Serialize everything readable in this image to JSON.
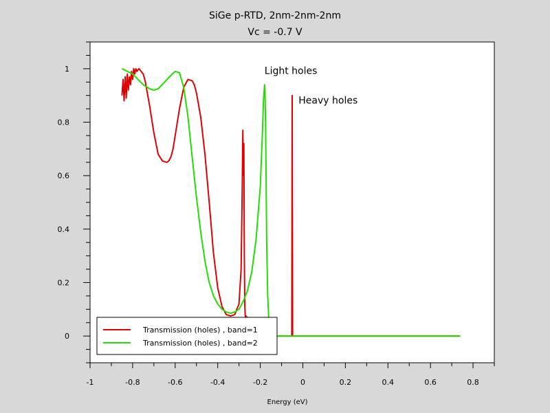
{
  "chart_data": {
    "type": "line",
    "title": "SiGe p-RTD, 2nm-2nm-2nm",
    "subtitle": "Vc = -0.7 V",
    "xlabel": "Energy (eV)",
    "ylabel": "",
    "xlim": [
      -1.0,
      0.9
    ],
    "ylim": [
      -0.1,
      1.1
    ],
    "xticks": [
      -1,
      -0.8,
      -0.6,
      -0.4,
      -0.2,
      0,
      0.2,
      0.4,
      0.6,
      0.8
    ],
    "xtick_labels": [
      "-1",
      "-0.8",
      "-0.6",
      "-0.4",
      "-0.2",
      "0",
      "0.2",
      "0.4",
      "0.6",
      "0.8"
    ],
    "yticks": [
      0,
      0.2,
      0.4,
      0.6,
      0.8,
      1
    ],
    "ytick_labels": [
      "0",
      "0.2",
      "0.4",
      "0.6",
      "0.8",
      "1"
    ],
    "grid": false,
    "legend_position": "bottom-left",
    "annotations": [
      {
        "text": "Light holes",
        "x": -0.18,
        "y": 0.98
      },
      {
        "text": "Heavy holes",
        "x": -0.02,
        "y": 0.87
      }
    ],
    "series": [
      {
        "name": "Transmission (holes) , band=1",
        "color": "#e00000",
        "x": [
          -0.85,
          -0.845,
          -0.84,
          -0.835,
          -0.83,
          -0.825,
          -0.82,
          -0.815,
          -0.81,
          -0.805,
          -0.8,
          -0.795,
          -0.79,
          -0.785,
          -0.78,
          -0.77,
          -0.76,
          -0.75,
          -0.74,
          -0.72,
          -0.7,
          -0.68,
          -0.66,
          -0.64,
          -0.63,
          -0.62,
          -0.61,
          -0.6,
          -0.58,
          -0.56,
          -0.54,
          -0.52,
          -0.51,
          -0.5,
          -0.48,
          -0.46,
          -0.44,
          -0.42,
          -0.4,
          -0.38,
          -0.36,
          -0.34,
          -0.32,
          -0.3,
          -0.29,
          -0.285,
          -0.282,
          -0.279,
          -0.277,
          -0.275,
          -0.273,
          -0.271,
          -0.269,
          -0.267,
          -0.265,
          -0.262,
          -0.26,
          -0.25,
          -0.24,
          -0.23,
          -0.22,
          -0.2,
          -0.18,
          -0.16,
          -0.14,
          -0.12,
          -0.1,
          -0.08,
          -0.06,
          -0.052,
          -0.05,
          -0.048,
          -0.04,
          0.0,
          0.2,
          0.4,
          0.6,
          0.74
        ],
        "values": [
          0.9,
          0.96,
          0.88,
          0.97,
          0.89,
          0.98,
          0.92,
          0.97,
          0.94,
          0.99,
          0.96,
          1.0,
          0.98,
          1.0,
          0.99,
          1.0,
          0.99,
          0.98,
          0.95,
          0.86,
          0.76,
          0.68,
          0.655,
          0.65,
          0.655,
          0.67,
          0.7,
          0.75,
          0.85,
          0.93,
          0.96,
          0.955,
          0.94,
          0.91,
          0.82,
          0.68,
          0.5,
          0.31,
          0.18,
          0.11,
          0.08,
          0.075,
          0.08,
          0.12,
          0.25,
          0.55,
          0.77,
          0.6,
          0.72,
          0.3,
          0.12,
          0.08,
          0.07,
          0.075,
          0.07,
          0.07,
          0.07,
          0.05,
          0.03,
          0.015,
          0.007,
          0.003,
          0.001,
          0.0,
          0.0,
          0.0,
          0.0,
          0.0,
          0.0,
          0.0,
          0.9,
          0.0,
          0.0,
          0.0,
          0.0,
          0.0,
          0.0,
          0.0
        ]
      },
      {
        "name": "Transmission (holes) , band=2",
        "color": "#22dd00",
        "x": [
          -0.85,
          -0.8,
          -0.75,
          -0.72,
          -0.7,
          -0.68,
          -0.65,
          -0.62,
          -0.6,
          -0.58,
          -0.56,
          -0.54,
          -0.52,
          -0.5,
          -0.48,
          -0.46,
          -0.44,
          -0.42,
          -0.4,
          -0.38,
          -0.36,
          -0.34,
          -0.32,
          -0.3,
          -0.28,
          -0.26,
          -0.24,
          -0.22,
          -0.2,
          -0.19,
          -0.185,
          -0.18,
          -0.178,
          -0.175,
          -0.172,
          -0.17,
          -0.165,
          -0.16,
          -0.155,
          -0.15,
          -0.14,
          -0.12,
          -0.1,
          0.0,
          0.2,
          0.4,
          0.6,
          0.74
        ],
        "values": [
          1.0,
          0.98,
          0.94,
          0.925,
          0.92,
          0.925,
          0.95,
          0.975,
          0.99,
          0.985,
          0.93,
          0.82,
          0.67,
          0.52,
          0.39,
          0.28,
          0.2,
          0.15,
          0.12,
          0.1,
          0.09,
          0.085,
          0.09,
          0.1,
          0.13,
          0.17,
          0.24,
          0.36,
          0.56,
          0.76,
          0.88,
          0.94,
          0.92,
          0.8,
          0.55,
          0.35,
          0.15,
          0.06,
          0.02,
          0.005,
          0.0,
          0.0,
          0.0,
          0.0,
          0.0,
          0.0,
          0.0,
          0.0
        ]
      }
    ]
  }
}
